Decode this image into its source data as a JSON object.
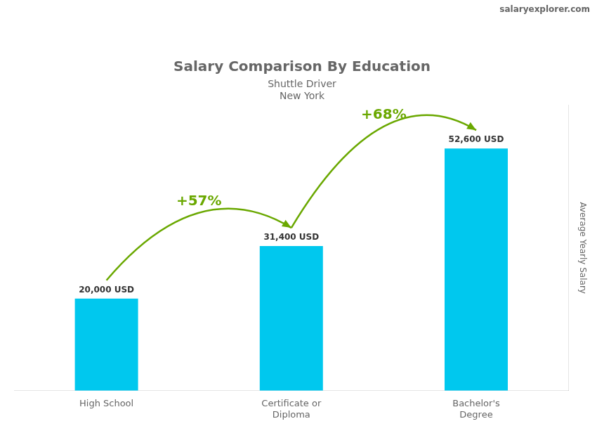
{
  "chart_data": {
    "type": "bar",
    "title": "Salary Comparison By Education",
    "subtitle": [
      "Shuttle Driver",
      "New York"
    ],
    "ylabel": "Average Yearly Salary",
    "categories": [
      "High School",
      "Certificate or\nDiploma",
      "Bachelor's\nDegree"
    ],
    "values": [
      20000,
      31400,
      52600
    ],
    "value_labels": [
      "20,000 USD",
      "31,400 USD",
      "52,600 USD"
    ],
    "data_labels": true,
    "color": "#00c8ee",
    "ylim": [
      0,
      62000
    ],
    "grid": false,
    "tick_labels": "x",
    "annotations": [
      {
        "text": "+57%",
        "from": "High School",
        "to": "Certificate or\nDiploma"
      },
      {
        "text": "+68%",
        "from": "Certificate or\nDiploma",
        "to": "Bachelor's\nDegree"
      },
      {
        "text": "salaryexplorer.com"
      }
    ]
  }
}
